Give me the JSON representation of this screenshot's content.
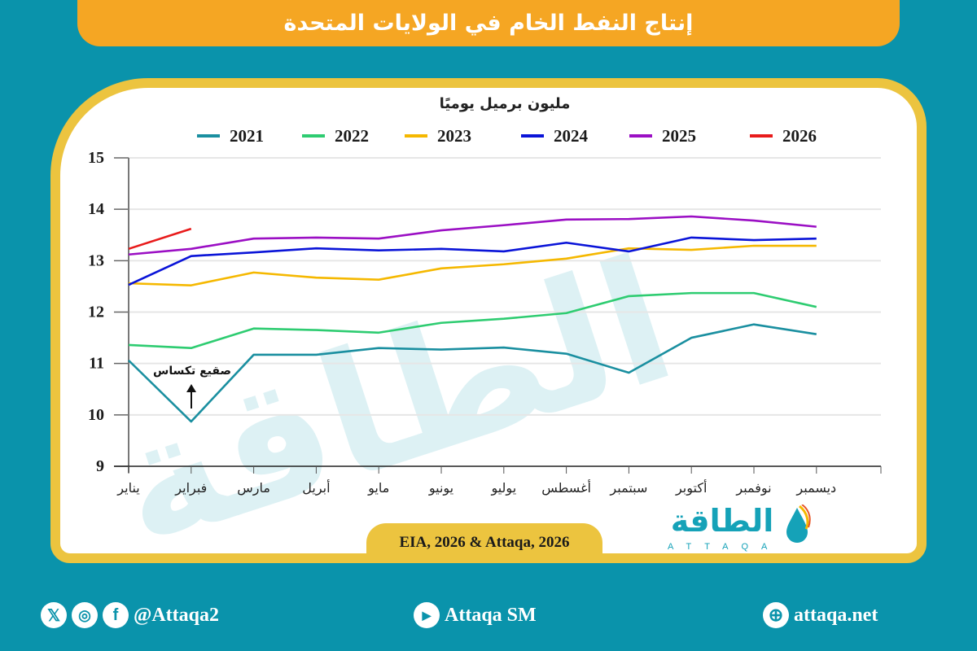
{
  "header": {
    "title": "إنتاج النفط الخام في الولايات المتحدة"
  },
  "chart_data": {
    "type": "line",
    "title": "إنتاج النفط الخام في الولايات المتحدة",
    "ylabel": "مليون برميل يوميًا",
    "xlabel": "",
    "ylim": [
      9,
      15
    ],
    "yticks": [
      9,
      10,
      11,
      12,
      13,
      14,
      15
    ],
    "grid": true,
    "legend_position": "top",
    "categories": [
      "يناير",
      "فبراير",
      "مارس",
      "أبريل",
      "مايو",
      "يونيو",
      "يوليو",
      "أغسطس",
      "سبتمبر",
      "أكتوبر",
      "نوفمبر",
      "ديسمبر"
    ],
    "series": [
      {
        "name": "2021",
        "color": "#1a8fa0",
        "values": [
          11.06,
          9.87,
          11.17,
          11.17,
          11.3,
          11.27,
          11.31,
          11.19,
          10.82,
          11.5,
          11.76,
          11.57
        ]
      },
      {
        "name": "2022",
        "color": "#2ecc71",
        "values": [
          11.36,
          11.3,
          11.68,
          11.65,
          11.6,
          11.79,
          11.87,
          11.98,
          12.31,
          12.37,
          12.37,
          12.1
        ]
      },
      {
        "name": "2023",
        "color": "#f5b800",
        "values": [
          12.56,
          12.52,
          12.77,
          12.67,
          12.63,
          12.85,
          12.93,
          13.04,
          13.24,
          13.21,
          13.29,
          13.29
        ]
      },
      {
        "name": "2024",
        "color": "#0a14d8",
        "values": [
          12.53,
          13.09,
          13.16,
          13.24,
          13.2,
          13.23,
          13.18,
          13.35,
          13.18,
          13.45,
          13.4,
          13.43
        ]
      },
      {
        "name": "2025",
        "color": "#9b0fc4",
        "values": [
          13.12,
          13.23,
          13.43,
          13.45,
          13.43,
          13.59,
          13.69,
          13.8,
          13.81,
          13.86,
          13.78,
          13.66
        ]
      },
      {
        "name": "2026",
        "color": "#e81b1b",
        "values": [
          13.23,
          13.62
        ]
      }
    ],
    "annotations": [
      {
        "text": "صقيع تكساس",
        "x": "فبراير",
        "series": "2021",
        "arrow": "up"
      }
    ]
  },
  "source": "EIA, 2026 & Attaqa, 2026",
  "logo": {
    "arabic": "الطاقة",
    "latin": "ATTAQA"
  },
  "footer": {
    "social_handle": "@Attaqa2",
    "youtube": "Attaqa SM",
    "website": "attaqa.net",
    "icons": [
      "x-icon",
      "instagram-icon",
      "facebook-icon",
      "youtube-icon",
      "globe-icon"
    ]
  },
  "colors": {
    "background": "#0a93ab",
    "title_bar": "#f5a623",
    "card_border": "#ecc43f"
  }
}
